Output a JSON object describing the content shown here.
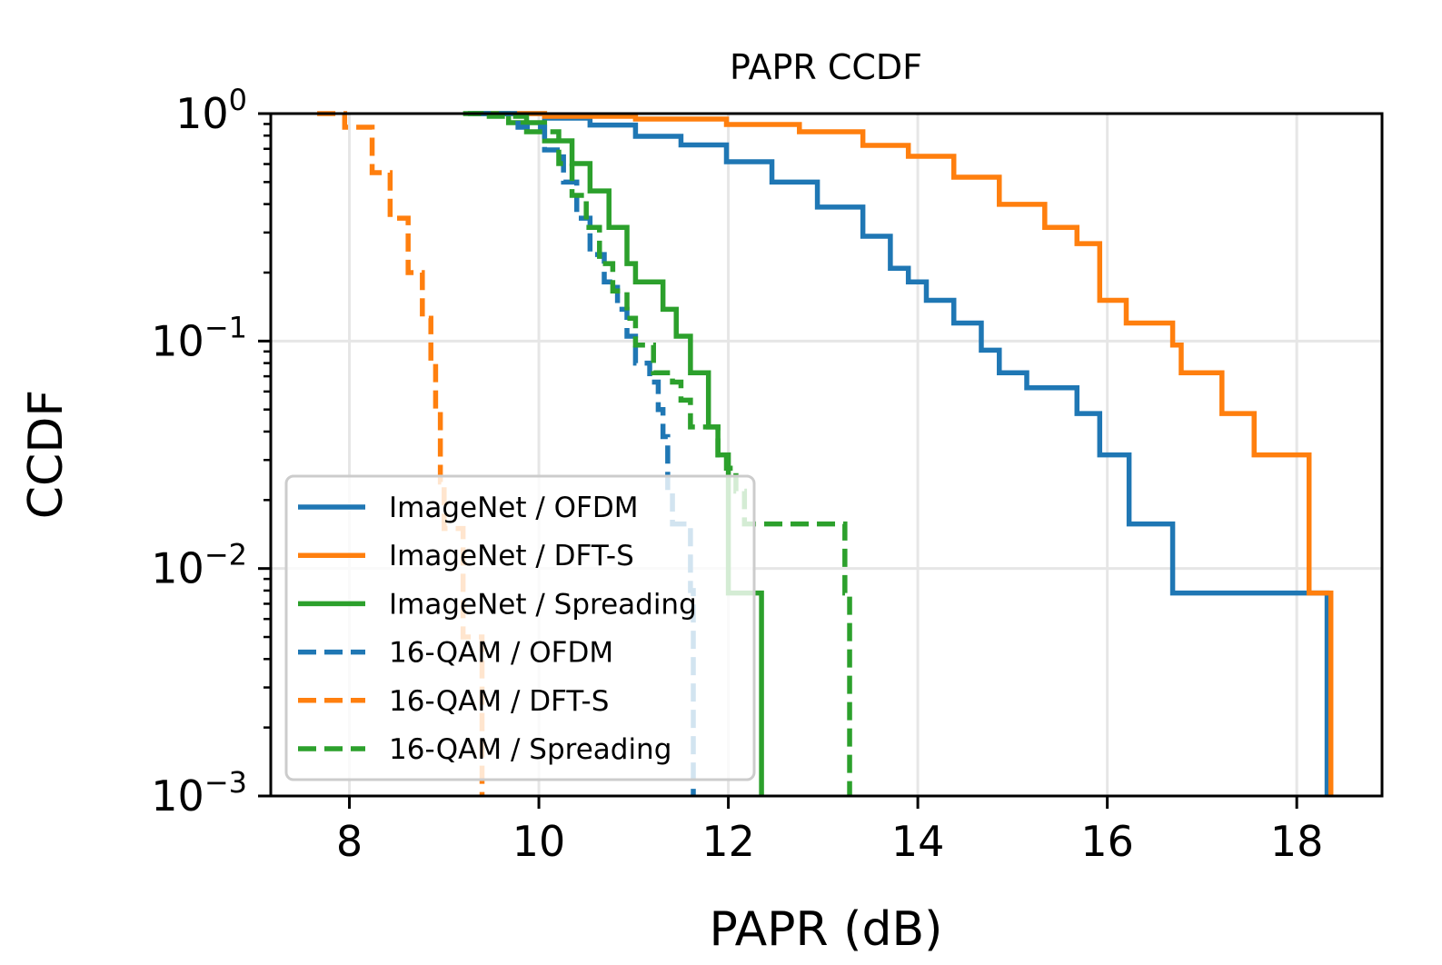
{
  "chart_data": {
    "type": "line",
    "title": "PAPR CCDF",
    "xlabel": "PAPR (dB)",
    "ylabel": "CCDF",
    "xlim": [
      7.17,
      18.9
    ],
    "ylim": [
      0.001,
      1
    ],
    "yscale": "log",
    "grid": true,
    "legend_placement": "lower-left",
    "x_ticks": [
      8,
      10,
      12,
      14,
      16,
      18
    ],
    "x_tick_labels": [
      "8",
      "10",
      "12",
      "14",
      "16",
      "18"
    ],
    "y_ticks": [
      1,
      0.1,
      0.01,
      0.001
    ],
    "y_tick_labels": [
      {
        "base": "10",
        "exp": "0"
      },
      {
        "base": "10",
        "exp": "−1"
      },
      {
        "base": "10",
        "exp": "−2"
      },
      {
        "base": "10",
        "exp": "−3"
      }
    ],
    "series": [
      {
        "name": "ImageNet / OFDM",
        "color": "#1f77b4",
        "style": "solid",
        "x": [
          9.25,
          10.06,
          10.54,
          11.02,
          11.5,
          11.98,
          12.46,
          12.94,
          13.42,
          13.71,
          13.9,
          14.09,
          14.38,
          14.67,
          14.86,
          15.15,
          15.58,
          15.68,
          15.92,
          16.2,
          16.23,
          16.69,
          18.32,
          18.32
        ],
        "y": [
          1,
          0.955,
          0.89,
          0.795,
          0.728,
          0.614,
          0.5,
          0.388,
          0.289,
          0.209,
          0.182,
          0.151,
          0.12,
          0.0912,
          0.0725,
          0.0623,
          0.0623,
          0.048,
          0.0316,
          0.0316,
          0.0157,
          0.0078,
          0.0078,
          0.001
        ]
      },
      {
        "name": "ImageNet / DFT-S",
        "color": "#ff7f0e",
        "style": "solid",
        "x": [
          9.3,
          10.06,
          11.02,
          11.98,
          12.75,
          13.42,
          13.9,
          14.38,
          14.86,
          15.34,
          15.68,
          15.92,
          16.2,
          16.69,
          16.78,
          17.17,
          17.21,
          17.5,
          17.55,
          18.08,
          18.13,
          18.13,
          18.36,
          18.36
        ],
        "y": [
          1,
          0.973,
          0.946,
          0.895,
          0.832,
          0.725,
          0.649,
          0.525,
          0.399,
          0.316,
          0.268,
          0.151,
          0.12,
          0.096,
          0.0725,
          0.0725,
          0.048,
          0.048,
          0.0316,
          0.0316,
          0.0157,
          0.0078,
          0.0078,
          0.001
        ]
      },
      {
        "name": "ImageNet / Spreading",
        "color": "#2ca02c",
        "style": "solid",
        "x": [
          9.25,
          9.68,
          10.06,
          10.35,
          10.54,
          10.74,
          10.93,
          11.02,
          11.21,
          11.31,
          11.45,
          11.6,
          11.74,
          11.79,
          11.89,
          11.98,
          12.0,
          12.35,
          12.35
        ],
        "y": [
          1,
          0.912,
          0.759,
          0.603,
          0.457,
          0.316,
          0.219,
          0.182,
          0.182,
          0.138,
          0.105,
          0.0725,
          0.0725,
          0.0419,
          0.0316,
          0.0316,
          0.0078,
          0.0078,
          0.001
        ]
      },
      {
        "name": "16-QAM / OFDM",
        "color": "#1f77b4",
        "style": "dashed",
        "x": [
          9.3,
          9.78,
          10.06,
          10.26,
          10.4,
          10.54,
          10.69,
          10.83,
          10.93,
          11.02,
          11.17,
          11.26,
          11.31,
          11.36,
          11.41,
          11.6,
          11.63
        ],
        "y": [
          1,
          0.871,
          0.692,
          0.5,
          0.347,
          0.24,
          0.182,
          0.138,
          0.105,
          0.08,
          0.066,
          0.05,
          0.038,
          0.0219,
          0.0157,
          0.008,
          0.001
        ]
      },
      {
        "name": "16-QAM / DFT-S",
        "color": "#ff7f0e",
        "style": "dashed",
        "x": [
          7.66,
          7.95,
          8.24,
          8.43,
          8.62,
          8.77,
          8.86,
          8.91,
          8.96,
          9.0,
          9.2,
          9.4,
          9.4
        ],
        "y": [
          1,
          0.871,
          0.55,
          0.347,
          0.2,
          0.126,
          0.08,
          0.05,
          0.024,
          0.015,
          0.005,
          0.0018,
          0.001
        ]
      },
      {
        "name": "16-QAM / Spreading",
        "color": "#2ca02c",
        "style": "dashed",
        "x": [
          9.2,
          9.39,
          9.87,
          10.21,
          10.35,
          10.5,
          10.64,
          10.78,
          10.93,
          11.02,
          11.21,
          11.41,
          11.5,
          11.6,
          11.89,
          11.98,
          12.08,
          12.17,
          13.23,
          13.23,
          13.28
        ],
        "y": [
          1,
          0.973,
          0.832,
          0.603,
          0.437,
          0.316,
          0.219,
          0.166,
          0.126,
          0.096,
          0.0725,
          0.066,
          0.055,
          0.0419,
          0.0316,
          0.0276,
          0.0219,
          0.0157,
          0.0157,
          0.0078,
          0.001
        ]
      }
    ]
  }
}
